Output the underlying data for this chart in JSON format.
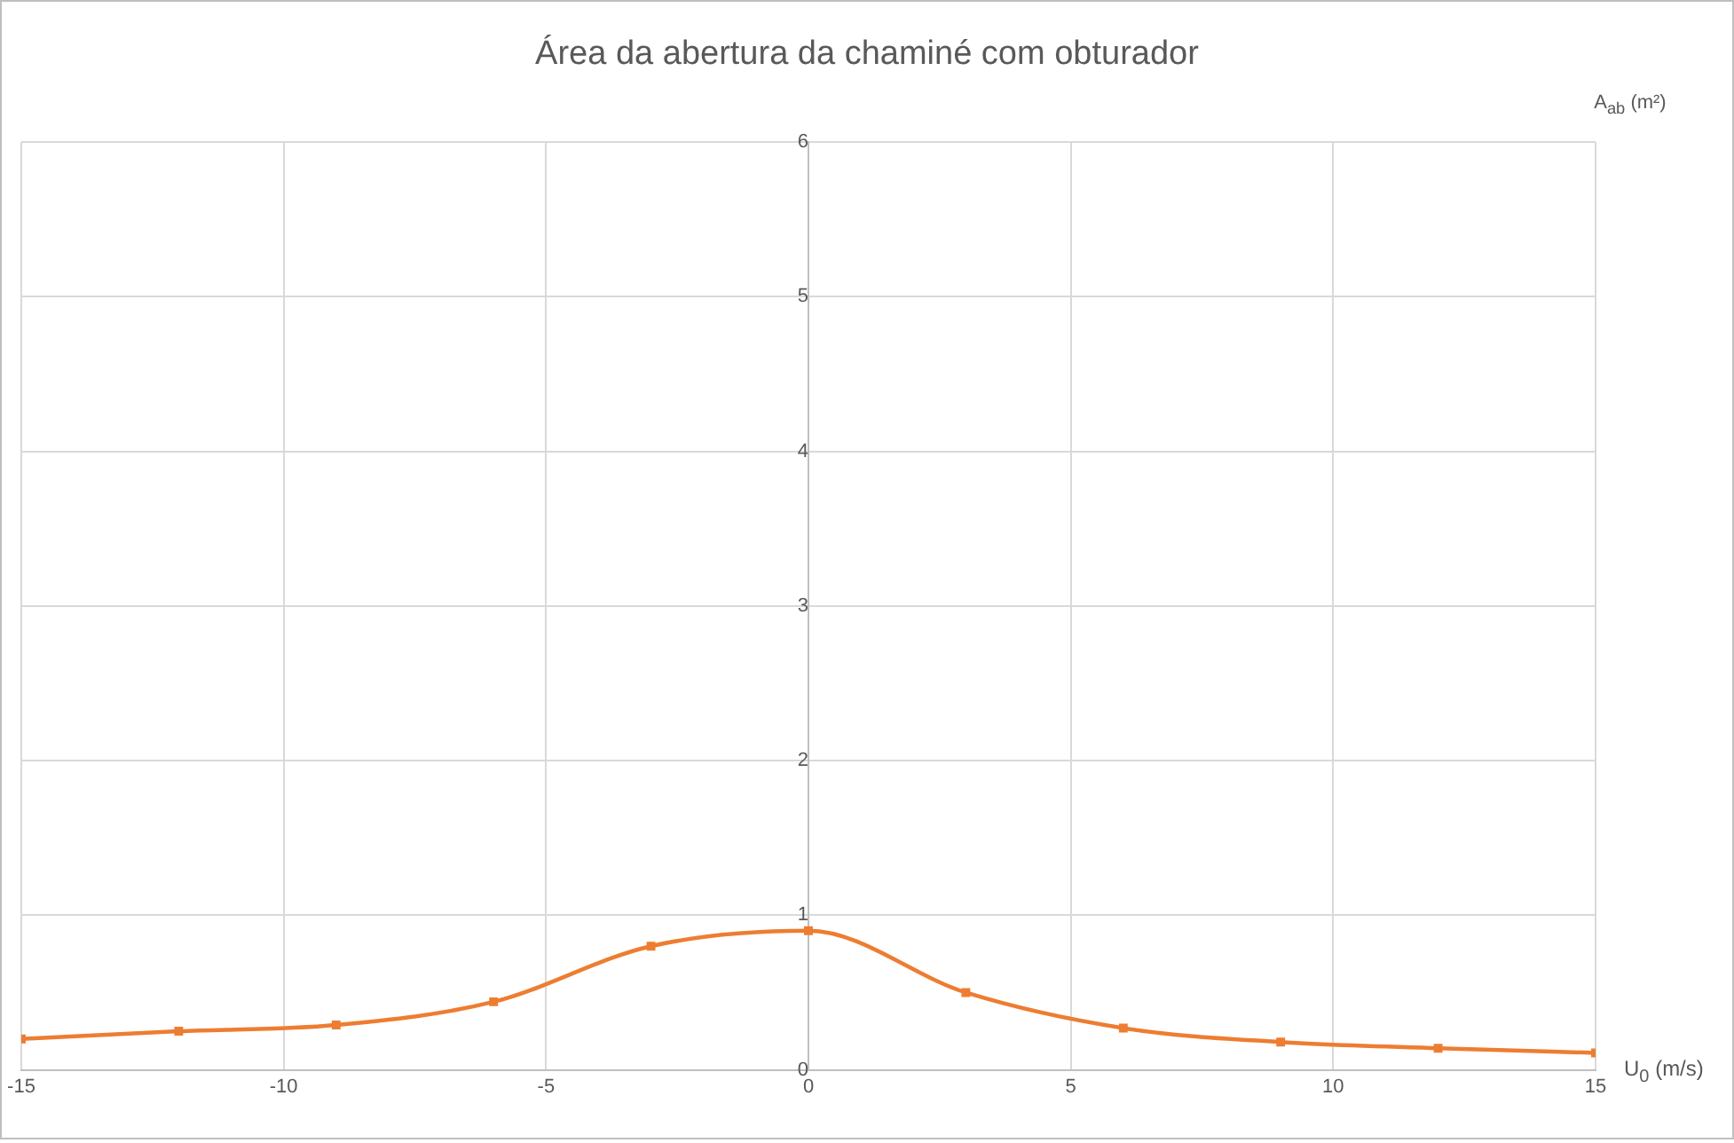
{
  "chart_data": {
    "type": "line",
    "title": "Área da abertura da chaminé com obturador",
    "xlabel": "U$_{0}$ (m/s)",
    "ylabel": "A$_{ab}$ (m²)",
    "x": [
      -15,
      -12,
      -9,
      -6,
      -3,
      0,
      3,
      6,
      9,
      12,
      15
    ],
    "series": [
      {
        "color": "#ed7d31",
        "values": [
          0.2,
          0.25,
          0.29,
          0.44,
          0.8,
          0.9,
          0.5,
          0.27,
          0.18,
          0.14,
          0.11
        ]
      }
    ],
    "xlim": [
      -15,
      15
    ],
    "xticks": [
      -15,
      -10,
      -5,
      0,
      5,
      10,
      15
    ],
    "ylim": [
      0,
      6
    ],
    "yticks": [
      0,
      1,
      2,
      3,
      4,
      5,
      6
    ],
    "grid": true,
    "legend": false,
    "marker": "square",
    "line_style": "solid"
  }
}
